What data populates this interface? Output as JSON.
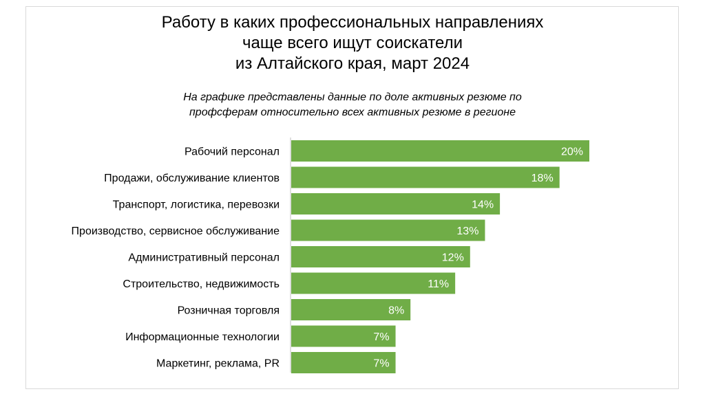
{
  "chart_data": {
    "type": "bar",
    "orientation": "horizontal",
    "title_lines": [
      "Работу в каких профессиональных направлениях",
      "чаще всего ищут соискатели",
      "из Алтайского края, март 2024"
    ],
    "subtitle_lines": [
      "На графике представлены данные по доле активных резюме по",
      "профсферам относительно всех активных резюме в регионе"
    ],
    "categories": [
      "Рабочий персонал",
      "Продажи, обслуживание клиентов",
      "Транспорт, логистика, перевозки",
      "Производство, сервисное обслуживание",
      "Административный персонал",
      "Строительство, недвижимость",
      "Розничная торговля",
      "Информационные технологии",
      "Маркетинг, реклама, PR"
    ],
    "values": [
      20,
      18,
      14,
      13,
      12,
      11,
      8,
      7,
      7
    ],
    "value_labels": [
      "20%",
      "18%",
      "14%",
      "13%",
      "12%",
      "11%",
      "8%",
      "7%",
      "7%"
    ],
    "xlim": [
      0,
      20
    ],
    "grid": false,
    "legend": "none",
    "bar_color": "#70ad47",
    "axis_color": "#bfbfbf"
  }
}
